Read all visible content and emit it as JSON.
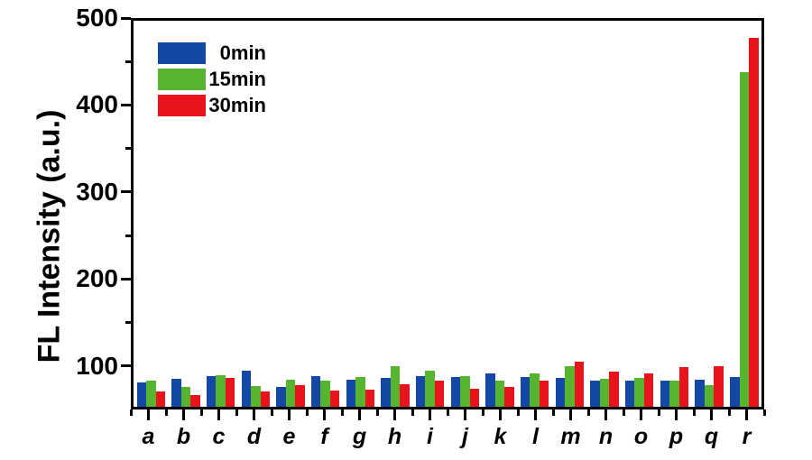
{
  "chart_data": {
    "type": "bar",
    "title": "",
    "xlabel": "",
    "ylabel": "FL Intensity (a.u.)",
    "ylim": [
      50,
      500
    ],
    "y_major_ticks": [
      100,
      200,
      300,
      400,
      500
    ],
    "y_minor_ticks": [
      150,
      250,
      350,
      450
    ],
    "grid": false,
    "legend_position": "top-left-inside",
    "axis_color": "#000000",
    "background": "#ffffff",
    "categories": [
      "a",
      "b",
      "c",
      "d",
      "e",
      "f",
      "g",
      "h",
      "i",
      "j",
      "k",
      "l",
      "m",
      "n",
      "o",
      "p",
      "q",
      "r"
    ],
    "series": [
      {
        "name": "0min",
        "color": "#1547A6",
        "values": [
          78,
          83,
          86,
          92,
          73,
          86,
          82,
          84,
          86,
          85,
          89,
          85,
          84,
          80,
          80,
          81,
          82,
          85
        ]
      },
      {
        "name": "15min",
        "color": "#56B42E",
        "values": [
          80,
          73,
          87,
          74,
          82,
          81,
          85,
          97,
          92,
          86,
          80,
          89,
          97,
          83,
          84,
          80,
          75,
          440
        ]
      },
      {
        "name": "30min",
        "color": "#E9131C",
        "values": [
          68,
          64,
          84,
          68,
          75,
          69,
          70,
          76,
          80,
          71,
          73,
          81,
          103,
          91,
          89,
          96,
          97,
          480
        ]
      }
    ]
  }
}
